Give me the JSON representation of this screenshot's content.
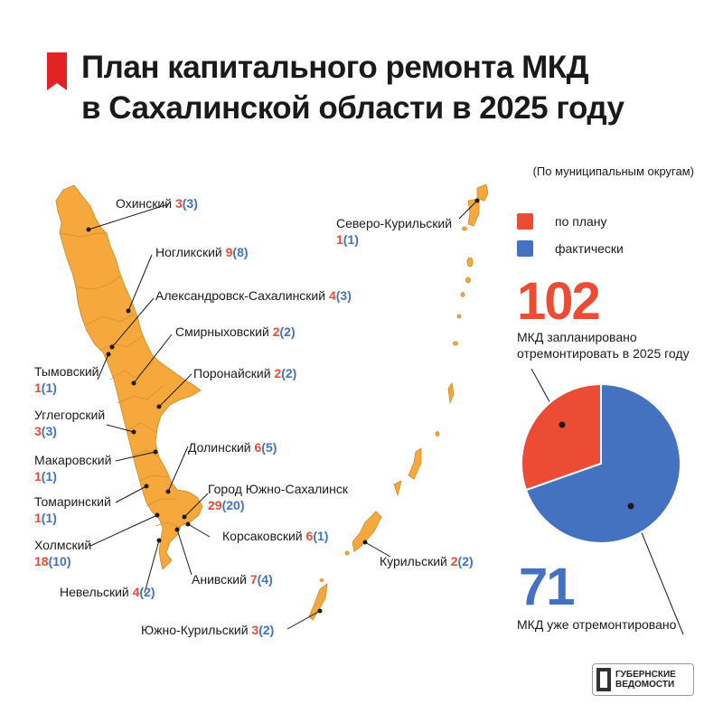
{
  "header": {
    "title_line1": "План капитального ремонта МКД",
    "title_line2": "в Сахалинской области в 2025 году",
    "subtitle": "(По муниципальным округам)"
  },
  "legend": {
    "plan_label": "по плану",
    "fact_label": "фактически"
  },
  "colors": {
    "plan": "#ec4c34",
    "fact": "#4472c0",
    "map_fill": "#f6a83c",
    "map_stroke": "#c98a2c",
    "accent_bar": "#e32323"
  },
  "summary": {
    "planned_value": "102",
    "planned_desc_line1": "МКД запланировано",
    "planned_desc_line2": "отремонтировать в 2025 году",
    "done_value": "71",
    "done_desc": "МКД уже отремонтировано"
  },
  "chart_data": {
    "type": "pie",
    "slices": [
      {
        "name": "по плану (не отремонтировано)",
        "value": 31
      },
      {
        "name": "фактически",
        "value": 71
      }
    ],
    "total": 102
  },
  "districts": [
    {
      "name": "Охинский",
      "plan": "3",
      "fact": "(3)"
    },
    {
      "name": "Ногликский",
      "plan": "9",
      "fact": "(8)"
    },
    {
      "name": "Александровск-Сахалинский",
      "plan": "4",
      "fact": "(3)"
    },
    {
      "name": "Смирныховский",
      "plan": "2",
      "fact": "(2)"
    },
    {
      "name": "Поронайский",
      "plan": "2",
      "fact": "(2)"
    },
    {
      "name": "Тымовский",
      "plan": "1",
      "fact": "(1)"
    },
    {
      "name": "Углегорский",
      "plan": "3",
      "fact": "(3)"
    },
    {
      "name": "Долинский",
      "plan": "6",
      "fact": "(5)"
    },
    {
      "name": "Макаровский",
      "plan": "1",
      "fact": "(1)"
    },
    {
      "name": "Город Южно-Сахалинск",
      "plan": "29",
      "fact": "(20)"
    },
    {
      "name": "Томаринский",
      "plan": "1",
      "fact": "(1)"
    },
    {
      "name": "Корсаковский",
      "plan": "6",
      "fact": "(1)"
    },
    {
      "name": "Холмский",
      "plan": "18",
      "fact": "(10)"
    },
    {
      "name": "Анивский",
      "plan": "7",
      "fact": "(4)"
    },
    {
      "name": "Невельский",
      "plan": "4",
      "fact": "(2)"
    },
    {
      "name": "Южно-Курильский",
      "plan": "3",
      "fact": "(2)"
    },
    {
      "name": "Курильский",
      "plan": "2",
      "fact": "(2)"
    },
    {
      "name": "Северо-Курильский",
      "plan": "1",
      "fact": "(1)"
    }
  ],
  "logo": {
    "line1": "ГУБЕРНСКИЕ",
    "line2": "ВЕДОМОСТИ"
  }
}
